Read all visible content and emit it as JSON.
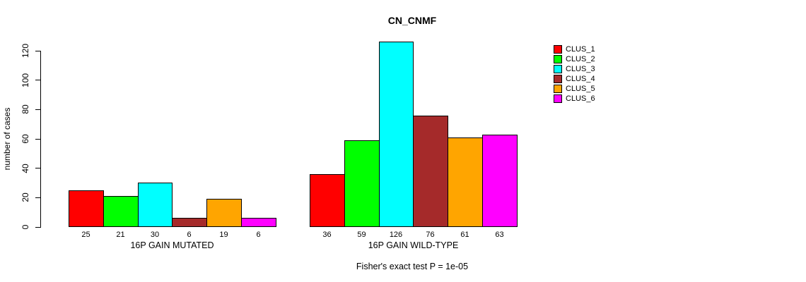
{
  "chart_data": {
    "type": "bar",
    "title": "CN_CNMF",
    "ylabel": "number of cases",
    "xlabel": "",
    "yticks": [
      0,
      20,
      40,
      60,
      80,
      100,
      120
    ],
    "ylim": [
      0,
      126
    ],
    "axis_max_tick": 120,
    "grid": false,
    "legend_position": "right",
    "categories": [
      "16P GAIN MUTATED",
      "16P GAIN WILD-TYPE"
    ],
    "series": [
      {
        "name": "CLUS_1",
        "color": "#FF0000",
        "values": [
          25,
          36
        ]
      },
      {
        "name": "CLUS_2",
        "color": "#00FF00",
        "values": [
          21,
          59
        ]
      },
      {
        "name": "CLUS_3",
        "color": "#00FFFF",
        "values": [
          30,
          126
        ]
      },
      {
        "name": "CLUS_4",
        "color": "#A52A2A",
        "values": [
          6,
          76
        ]
      },
      {
        "name": "CLUS_5",
        "color": "#FFA500",
        "values": [
          19,
          61
        ]
      },
      {
        "name": "CLUS_6",
        "color": "#FF00FF",
        "values": [
          6,
          63
        ]
      }
    ],
    "annotation": "Fisher's exact test P = 1e-05",
    "text_color": "#000000",
    "background_color": "#FFFFFF"
  }
}
